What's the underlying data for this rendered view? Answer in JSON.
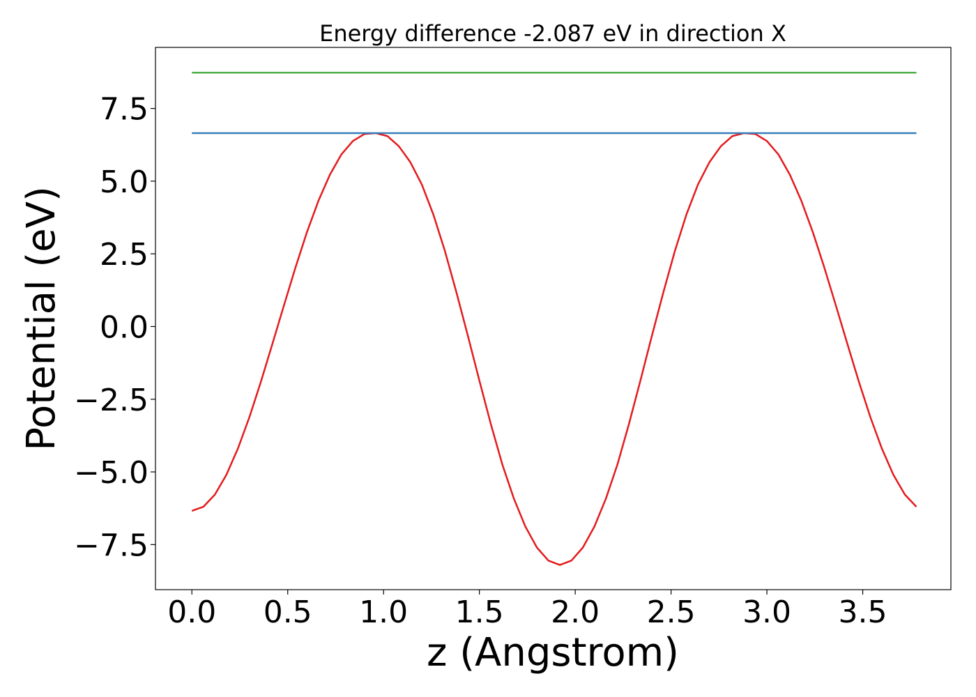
{
  "chart_data": {
    "type": "line",
    "title": "Energy difference -2.087 eV in direction X",
    "xlabel": "z (Angstrom)",
    "ylabel": "Potential (eV)",
    "xlim": [
      -0.19,
      3.96
    ],
    "ylim": [
      -9.05,
      9.6
    ],
    "xticks": [
      0.0,
      0.5,
      1.0,
      1.5,
      2.0,
      2.5,
      3.0,
      3.5
    ],
    "xtick_labels": [
      "0.0",
      "0.5",
      "1.0",
      "1.5",
      "2.0",
      "2.5",
      "3.0",
      "3.5"
    ],
    "yticks": [
      -7.5,
      -5.0,
      -2.5,
      0.0,
      2.5,
      5.0,
      7.5
    ],
    "ytick_labels": [
      "−7.5",
      "−5.0",
      "−2.5",
      "0.0",
      "2.5",
      "5.0",
      "7.5"
    ],
    "grid": false,
    "series": [
      {
        "color": "#e41a1c",
        "x": [
          0.0,
          0.06,
          0.12,
          0.18,
          0.24,
          0.3,
          0.36,
          0.42,
          0.48,
          0.54,
          0.6,
          0.66,
          0.72,
          0.78,
          0.84,
          0.9,
          0.96,
          1.02,
          1.08,
          1.14,
          1.2,
          1.26,
          1.32,
          1.38,
          1.44,
          1.5,
          1.56,
          1.62,
          1.68,
          1.74,
          1.8,
          1.86,
          1.92,
          1.98,
          2.04,
          2.1,
          2.16,
          2.22,
          2.28,
          2.34,
          2.4,
          2.46,
          2.52,
          2.58,
          2.64,
          2.7,
          2.76,
          2.82,
          2.88,
          2.94,
          3.0,
          3.06,
          3.12,
          3.18,
          3.24,
          3.3,
          3.36,
          3.42,
          3.48,
          3.54,
          3.6,
          3.66,
          3.72,
          3.78
        ],
        "y": [
          -6.34,
          -6.2,
          -5.78,
          -5.1,
          -4.2,
          -3.12,
          -1.9,
          -0.6,
          0.72,
          2.02,
          3.24,
          4.32,
          5.22,
          5.92,
          6.38,
          6.62,
          6.65,
          6.55,
          6.2,
          5.65,
          4.88,
          3.85,
          2.6,
          1.18,
          -0.32,
          -1.86,
          -3.36,
          -4.75,
          -5.92,
          -6.88,
          -7.6,
          -8.05,
          -8.2,
          -8.05,
          -7.6,
          -6.88,
          -5.92,
          -4.75,
          -3.36,
          -1.86,
          -0.32,
          1.18,
          2.6,
          3.85,
          4.88,
          5.65,
          6.2,
          6.55,
          6.65,
          6.62,
          6.38,
          5.92,
          5.22,
          4.32,
          3.24,
          2.02,
          0.72,
          -0.6,
          -1.9,
          -3.12,
          -4.2,
          -5.1,
          -5.78,
          -6.2
        ]
      },
      {
        "color": "#377eb8",
        "x": [
          0.0,
          3.78
        ],
        "y": [
          6.65,
          6.65
        ]
      },
      {
        "color": "#4daf4a",
        "x": [
          0.0,
          3.78
        ],
        "y": [
          8.73,
          8.73
        ]
      }
    ]
  }
}
